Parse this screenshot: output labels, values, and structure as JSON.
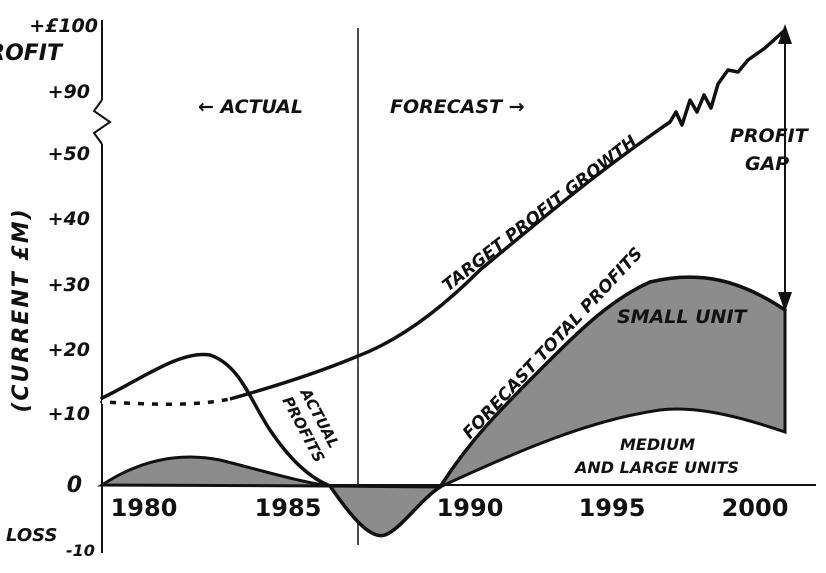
{
  "chart_data": {
    "type": "area",
    "ylabel": "(CURRENT £M)",
    "y_top_label": "+£100",
    "y_top_sublabel": "PROFIT",
    "y_bottom_label": "LOSS",
    "y_ticks": [
      "+90",
      "+50",
      "+40",
      "+30",
      "+20",
      "+10",
      "0",
      "-10"
    ],
    "x_ticks": [
      "1980",
      "1985",
      "1990",
      "1995",
      "2000"
    ],
    "xlim": [
      1978,
      2002
    ],
    "ylim": [
      -10,
      100
    ],
    "axis_break": "between +50 and +90",
    "divider_year": 1987,
    "periods": {
      "actual": "← ACTUAL",
      "forecast": "FORECAST →"
    },
    "series": [
      {
        "name": "TARGET PROFIT GROWTH",
        "x": [
          1978,
          1980,
          1982,
          1984,
          1986,
          1987,
          1988,
          1990,
          1992,
          1994,
          1996,
          1998,
          2000,
          2001
        ],
        "y": [
          11,
          11,
          11,
          13,
          15,
          17,
          20,
          28,
          36,
          43,
          49,
          85,
          92,
          100
        ]
      },
      {
        "name": "ACTUAL PROFITS",
        "x": [
          1978,
          1980,
          1982,
          1983,
          1984,
          1985,
          1986,
          1987
        ],
        "y": [
          12,
          16,
          18,
          16,
          8,
          2,
          -1,
          -3
        ]
      },
      {
        "name": "FORECAST TOTAL PROFITS",
        "x": [
          1987,
          1988,
          1989,
          1990,
          1992,
          1994,
          1996,
          1998,
          2000,
          2001
        ],
        "y": [
          -7,
          -5,
          0,
          7,
          17,
          25,
          29,
          30,
          28,
          26
        ]
      },
      {
        "name": "MEDIUM AND LARGE UNITS",
        "x": [
          1978,
          1980,
          1982,
          1984,
          1986,
          1987,
          1988,
          1989,
          1990,
          1992,
          1994,
          1996,
          1998,
          2000,
          2001
        ],
        "y": [
          0,
          3,
          4,
          3,
          0,
          -2,
          -3,
          0,
          2,
          5,
          8,
          10,
          10,
          9,
          8
        ]
      }
    ],
    "annotations": {
      "small_unit": "SMALL UNIT",
      "medium_large_1": "MEDIUM",
      "medium_large_2": "AND LARGE UNITS",
      "profit_gap_1": "PROFIT",
      "profit_gap_2": "GAP",
      "actual_profits_1": "ACTUAL",
      "actual_profits_2": "PROFITS",
      "target_growth": "TARGET PROFIT GROWTH",
      "forecast_total": "FORECAST TOTAL PROFITS"
    },
    "colors": {
      "line": "#111111",
      "fill": "#8c8c8c",
      "background": "#ffffff"
    }
  }
}
